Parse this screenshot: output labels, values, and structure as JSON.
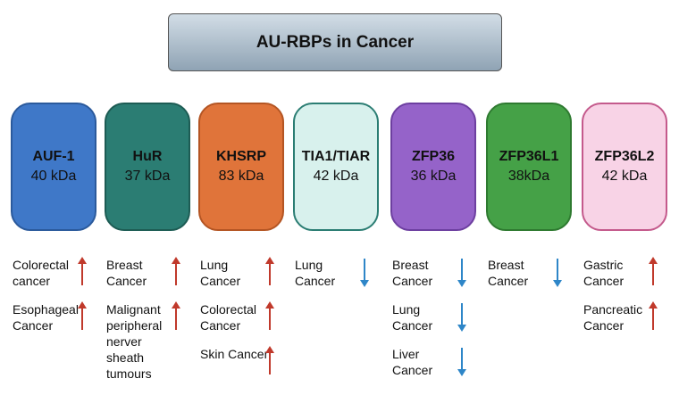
{
  "title": "AU-RBPs in Cancer",
  "proteins": [
    {
      "name": "AUF-1",
      "weight": "40 kDa",
      "color": "#3f78c8",
      "border": "#2b5a9c",
      "cancers": [
        {
          "label": "Colorectal cancer",
          "trend": "up"
        },
        {
          "label": "Esophageal Cancer",
          "trend": "up"
        }
      ]
    },
    {
      "name": "HuR",
      "weight": "37 kDa",
      "color": "#2b7d73",
      "border": "#1d5c54",
      "cancers": [
        {
          "label": "Breast Cancer",
          "trend": "up"
        },
        {
          "label": "Malignant peripheral nerver sheath tumours",
          "trend": "up"
        }
      ]
    },
    {
      "name": "KHSRP",
      "weight": "83 kDa",
      "color": "#e0743a",
      "border": "#b45523",
      "cancers": [
        {
          "label": "Lung Cancer",
          "trend": "up"
        },
        {
          "label": "Colorectal Cancer",
          "trend": "up"
        },
        {
          "label": "Skin Cancer",
          "trend": "up"
        }
      ]
    },
    {
      "name": "TIA1/TIAR",
      "weight": "42 kDa",
      "color": "#d8f1ed",
      "border": "#2b7d73",
      "cancers": [
        {
          "label": "Lung Cancer",
          "trend": "down"
        }
      ]
    },
    {
      "name": "ZFP36",
      "weight": "36 kDa",
      "color": "#9563c9",
      "border": "#6d3fa0",
      "cancers": [
        {
          "label": "Breast Cancer",
          "trend": "down"
        },
        {
          "label": "Lung Cancer",
          "trend": "down"
        },
        {
          "label": "Liver Cancer",
          "trend": "down"
        }
      ]
    },
    {
      "name": "ZFP36L1",
      "weight": "38kDa",
      "color": "#45a147",
      "border": "#2e7a30",
      "cancers": [
        {
          "label": "Breast Cancer",
          "trend": "down"
        }
      ]
    },
    {
      "name": "ZFP36L2",
      "weight": "42 kDa",
      "color": "#f8d3e6",
      "border": "#c45a8c",
      "cancers": [
        {
          "label": "Gastric Cancer",
          "trend": "up"
        },
        {
          "label": "Pancreatic Cancer",
          "trend": "up"
        }
      ]
    }
  ]
}
